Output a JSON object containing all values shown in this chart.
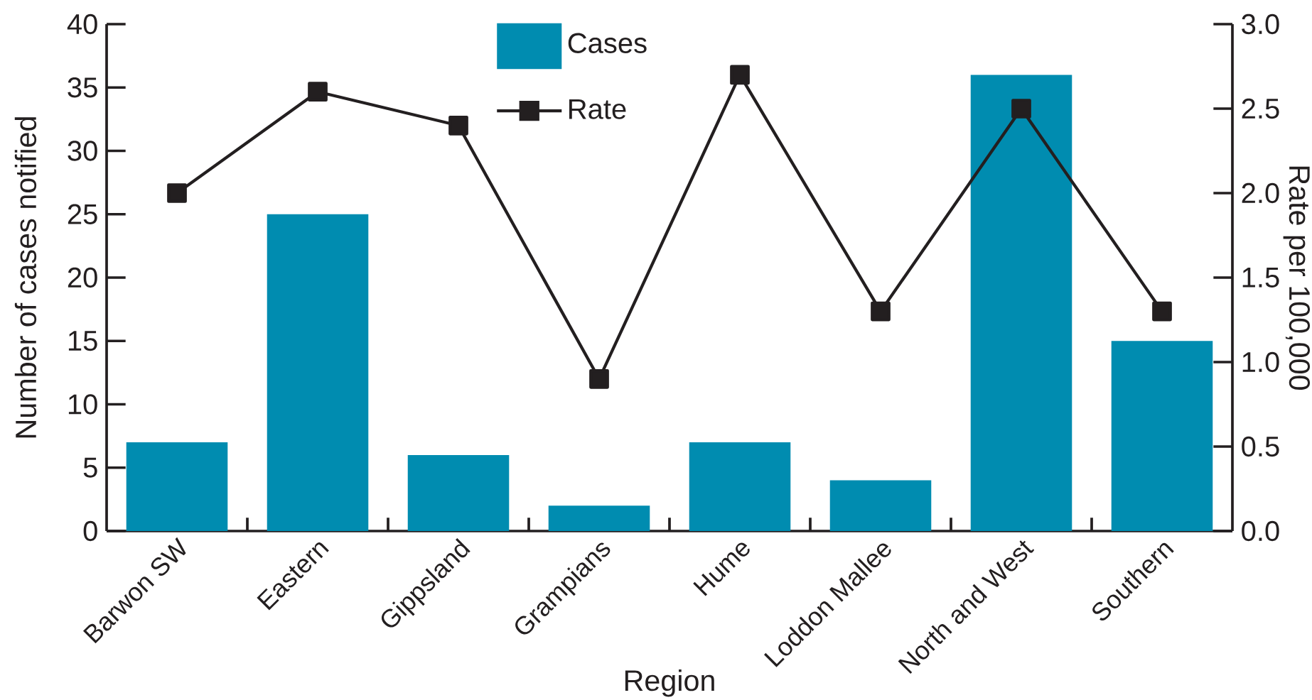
{
  "chart_data": {
    "type": "bar",
    "xlabel": "Region",
    "ylabel": "Number of cases notified",
    "y2label": "Rate per 100,000",
    "categories": [
      "Barwon SW",
      "Eastern",
      "Gippsland",
      "Grampians",
      "Hume",
      "Loddon Mallee",
      "North and West",
      "Southern"
    ],
    "series": [
      {
        "name": "Cases",
        "color": "#008cb0",
        "values": [
          7,
          25,
          6,
          2,
          7,
          4,
          36,
          15
        ]
      },
      {
        "name": "Rate",
        "type": "line",
        "axis": "y2",
        "color": "#231f20",
        "values": [
          2.0,
          2.6,
          2.4,
          0.9,
          2.7,
          1.3,
          2.5,
          1.3
        ]
      }
    ],
    "ylim": [
      0,
      40
    ],
    "yticks": [
      0,
      5,
      10,
      15,
      20,
      25,
      30,
      35,
      40
    ],
    "y2lim": [
      0,
      3
    ],
    "y2ticks": [
      {
        "value": 0,
        "label": "0.0"
      },
      {
        "value": 0.5,
        "label": "0.5"
      },
      {
        "value": 1,
        "label": "1.0"
      },
      {
        "value": 1.5,
        "label": "1.5"
      },
      {
        "value": 2,
        "label": "2.0"
      },
      {
        "value": 2.5,
        "label": "2.5"
      },
      {
        "value": 3,
        "label": "3.0"
      }
    ],
    "marker": "square",
    "legend": "top"
  }
}
